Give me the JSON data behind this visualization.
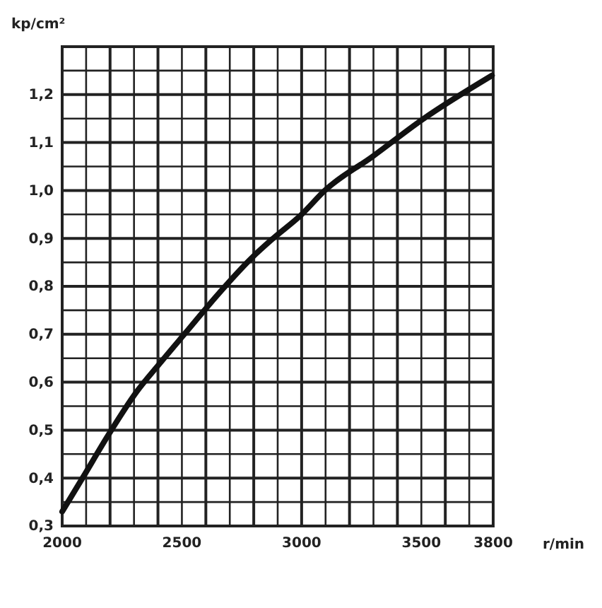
{
  "chart_data": {
    "type": "line",
    "xlabel": "r/min",
    "ylabel": "kp/cm²",
    "x": [
      2000,
      2085,
      2193,
      2311,
      2409,
      2527,
      2645,
      2793,
      2881,
      3000,
      3097,
      3294,
      3510,
      3795
    ],
    "series": [
      {
        "color": "#111111",
        "values": [
          0.33,
          0.4,
          0.49,
          0.58,
          0.64,
          0.71,
          0.78,
          0.86,
          0.9,
          0.95,
          1.0,
          1.07,
          1.15,
          1.24
        ]
      }
    ],
    "xlim": [
      2000,
      3800
    ],
    "xticks": [
      2000,
      {
        "value": 2100,
        "label": null
      },
      {
        "value": 2200,
        "label": null
      },
      {
        "value": 2300,
        "label": null
      },
      {
        "value": 2400,
        "label": null
      },
      2500,
      {
        "value": 2600,
        "label": null
      },
      {
        "value": 2700,
        "label": null
      },
      {
        "value": 2800,
        "label": null
      },
      {
        "value": 2900,
        "label": null
      },
      3000,
      {
        "value": 3100,
        "label": null
      },
      {
        "value": 3200,
        "label": null
      },
      {
        "value": 3300,
        "label": null
      },
      {
        "value": 3400,
        "label": null
      },
      3500,
      {
        "value": 3600,
        "label": null
      },
      {
        "value": 3700,
        "label": null
      },
      3800
    ],
    "ylim": [
      0.3,
      1.3
    ],
    "yticks": [
      {
        "value": 0.3,
        "label": "0,3"
      },
      {
        "value": 0.35,
        "label": null
      },
      {
        "value": 0.4,
        "label": "0,4"
      },
      {
        "value": 0.45,
        "label": null
      },
      {
        "value": 0.5,
        "label": "0,5"
      },
      {
        "value": 0.55,
        "label": null
      },
      {
        "value": 0.6,
        "label": "0,6"
      },
      {
        "value": 0.65,
        "label": null
      },
      {
        "value": 0.7,
        "label": "0,7"
      },
      {
        "value": 0.75,
        "label": null
      },
      {
        "value": 0.8,
        "label": "0,8"
      },
      {
        "value": 0.85,
        "label": null
      },
      {
        "value": 0.9,
        "label": "0,9"
      },
      {
        "value": 0.95,
        "label": null
      },
      {
        "value": 1.0,
        "label": "1,0"
      },
      {
        "value": 1.05,
        "label": null
      },
      {
        "value": 1.1,
        "label": "1,1"
      },
      {
        "value": 1.15,
        "label": null
      },
      {
        "value": 1.2,
        "label": "1,2"
      },
      {
        "value": 1.25,
        "label": null
      },
      {
        "value": 1.3,
        "label": null
      }
    ],
    "grid": true,
    "marker": "none",
    "line_style": "solid"
  }
}
